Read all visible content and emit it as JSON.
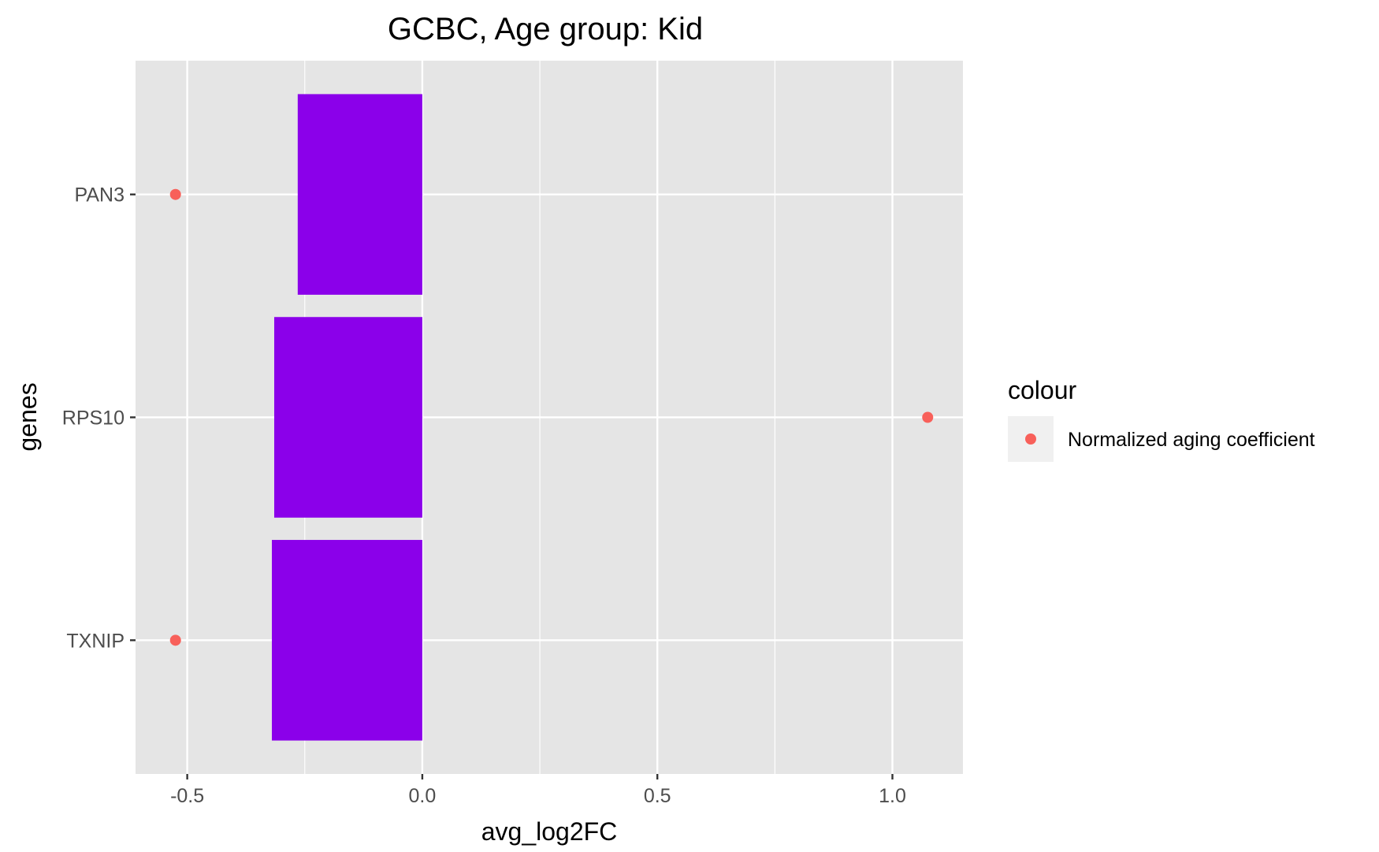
{
  "chart_data": {
    "type": "bar",
    "orientation": "horizontal",
    "title": "GCBC, Age group: Kid",
    "xlabel": "avg_log2FC",
    "ylabel": "genes",
    "categories": [
      "PAN3",
      "RPS10",
      "TXNIP"
    ],
    "bar_values": [
      -0.265,
      -0.315,
      -0.32
    ],
    "bar_color": "#8b00ea",
    "points": {
      "name": "Normalized aging coefficient",
      "color": "#f8605a",
      "values": [
        -0.525,
        1.075,
        -0.525
      ]
    },
    "xlim": [
      -0.61,
      1.15
    ],
    "xticks": [
      -0.5,
      0.0,
      0.5,
      1.0
    ],
    "xtick_labels": [
      "-0.5",
      "0.0",
      "0.5",
      "1.0"
    ],
    "grid": true,
    "panel_background": "#e5e5e5",
    "legend": {
      "title": "colour",
      "position": "right",
      "entries": [
        "Normalized aging coefficient"
      ]
    }
  }
}
